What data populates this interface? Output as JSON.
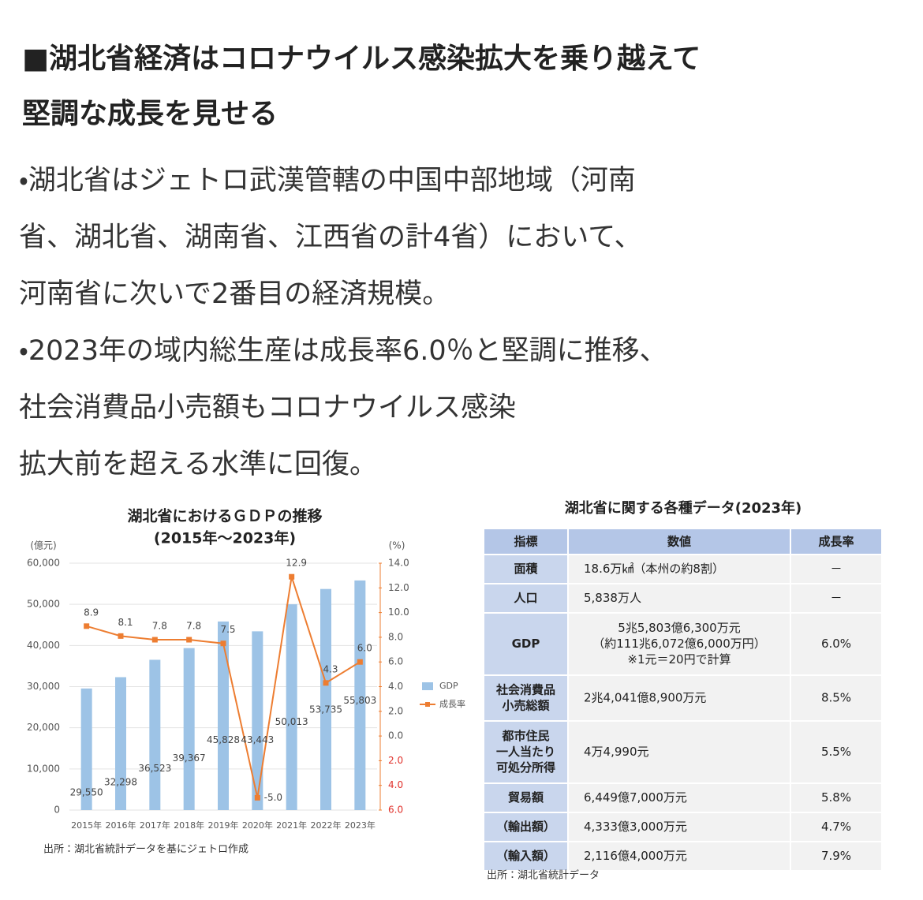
{
  "header": {
    "lines": [
      "■湖北省経済はコロナウイルス感染拡大を乗り越えて",
      "堅調な成長を見せる"
    ]
  },
  "body": {
    "lines": [
      "・湖北省はジェトロ武漢管轄の中国中部地域（河南",
      "省、湖北省、湖南省、江西省の計4省）において、",
      "河南省に次いで2番目の経済規模。",
      "・2023年の域内総生産は成長率6.0％と堅調に推移、",
      "社会消費品小売額もコロナウイルス感染",
      "拡大前を超える水準に回復。"
    ]
  },
  "chart_data": {
    "type": "bar_line",
    "title": [
      "湖北省におけるＧＤＰの推移",
      "(2015年～2023年)"
    ],
    "y_label": "(億元)",
    "y2_label": "(%)",
    "categories": [
      "2015年",
      "2016年",
      "2017年",
      "2018年",
      "2019年",
      "2020年",
      "2021年",
      "2022年",
      "2023年"
    ],
    "series": [
      {
        "name": "GDP",
        "type": "bar",
        "color": "#9dc3e6",
        "values": [
          29550,
          32298,
          36523,
          39367,
          45828,
          43443,
          50013,
          53735,
          55803
        ],
        "value_labels": [
          "29,550",
          "32,298",
          "36,523",
          "39,367",
          "45,828",
          "43,443",
          "50,013",
          "53,735",
          "55,803"
        ]
      },
      {
        "name": "成長率",
        "type": "line",
        "axis": "y2",
        "color": "#ed7d31",
        "values": [
          8.9,
          8.1,
          7.8,
          7.8,
          7.5,
          -5.0,
          12.9,
          4.3,
          6.0
        ],
        "value_labels": [
          "8.9",
          "8.1",
          "7.8",
          "7.8",
          "7.5",
          "-5.0",
          "12.9",
          "4.3",
          "6.0"
        ]
      }
    ],
    "ylim": [
      0,
      60000
    ],
    "yticks": [
      0,
      {
        "value": 10000,
        "label": "10,000"
      },
      {
        "value": 20000,
        "label": "20,000"
      },
      {
        "value": 30000,
        "label": "30,000"
      },
      {
        "value": 40000,
        "label": "40,000"
      },
      {
        "value": 50000,
        "label": "50,000"
      },
      {
        "value": 60000,
        "label": "60,000"
      }
    ],
    "y2lim": [
      -6,
      14
    ],
    "y2ticks": [
      {
        "value": 14,
        "label": "14.0"
      },
      {
        "value": 12,
        "label": "12.0"
      },
      {
        "value": 10,
        "label": "10.0"
      },
      {
        "value": 8,
        "label": "8.0"
      },
      {
        "value": 6,
        "label": "6.0"
      },
      {
        "value": 4,
        "label": "4.0"
      },
      {
        "value": 2,
        "label": "2.0"
      },
      {
        "value": 0,
        "label": "0.0"
      },
      {
        "value": -2,
        "label": "2.0"
      },
      {
        "value": -4,
        "label": "4.0"
      },
      {
        "value": -6,
        "label": "6.0"
      }
    ],
    "negative_tick_color": "#e0302a",
    "grid": true,
    "legend": "right",
    "source": "出所：湖北省統計データを基にジェトロ作成"
  },
  "table": {
    "title": "湖北省に関する各種データ(2023年)",
    "header": [
      "指標",
      "数値",
      "成長率"
    ],
    "rows": [
      [
        [
          "面積"
        ],
        [
          "18.6万㎢（本州の約8割）"
        ],
        [
          "－"
        ]
      ],
      [
        [
          "人口"
        ],
        [
          "5,838万人"
        ],
        [
          "－"
        ]
      ],
      [
        [
          "GDP"
        ],
        [
          "5兆5,803億6,300万元",
          "（約111兆6,072億6,000万円）",
          "※1元＝20円で計算"
        ],
        [
          "6.0%"
        ]
      ],
      [
        [
          "社会消費品",
          "小売総額"
        ],
        [
          "2兆4,041億8,900万元"
        ],
        [
          "8.5%"
        ]
      ],
      [
        [
          "都市住民",
          "一人当たり",
          "可処分所得"
        ],
        [
          "4万4,990元"
        ],
        [
          "5.5%"
        ]
      ],
      [
        [
          "貿易額"
        ],
        [
          "6,449億7,000万元"
        ],
        [
          "5.8%"
        ]
      ],
      [
        [
          "（輸出額）"
        ],
        [
          "4,333億3,000万元"
        ],
        [
          "4.7%"
        ]
      ],
      [
        [
          "（輸入額）"
        ],
        [
          "2,116億4,000万元"
        ],
        [
          "7.9%"
        ]
      ]
    ],
    "source": "出所：湖北省統計データ"
  }
}
